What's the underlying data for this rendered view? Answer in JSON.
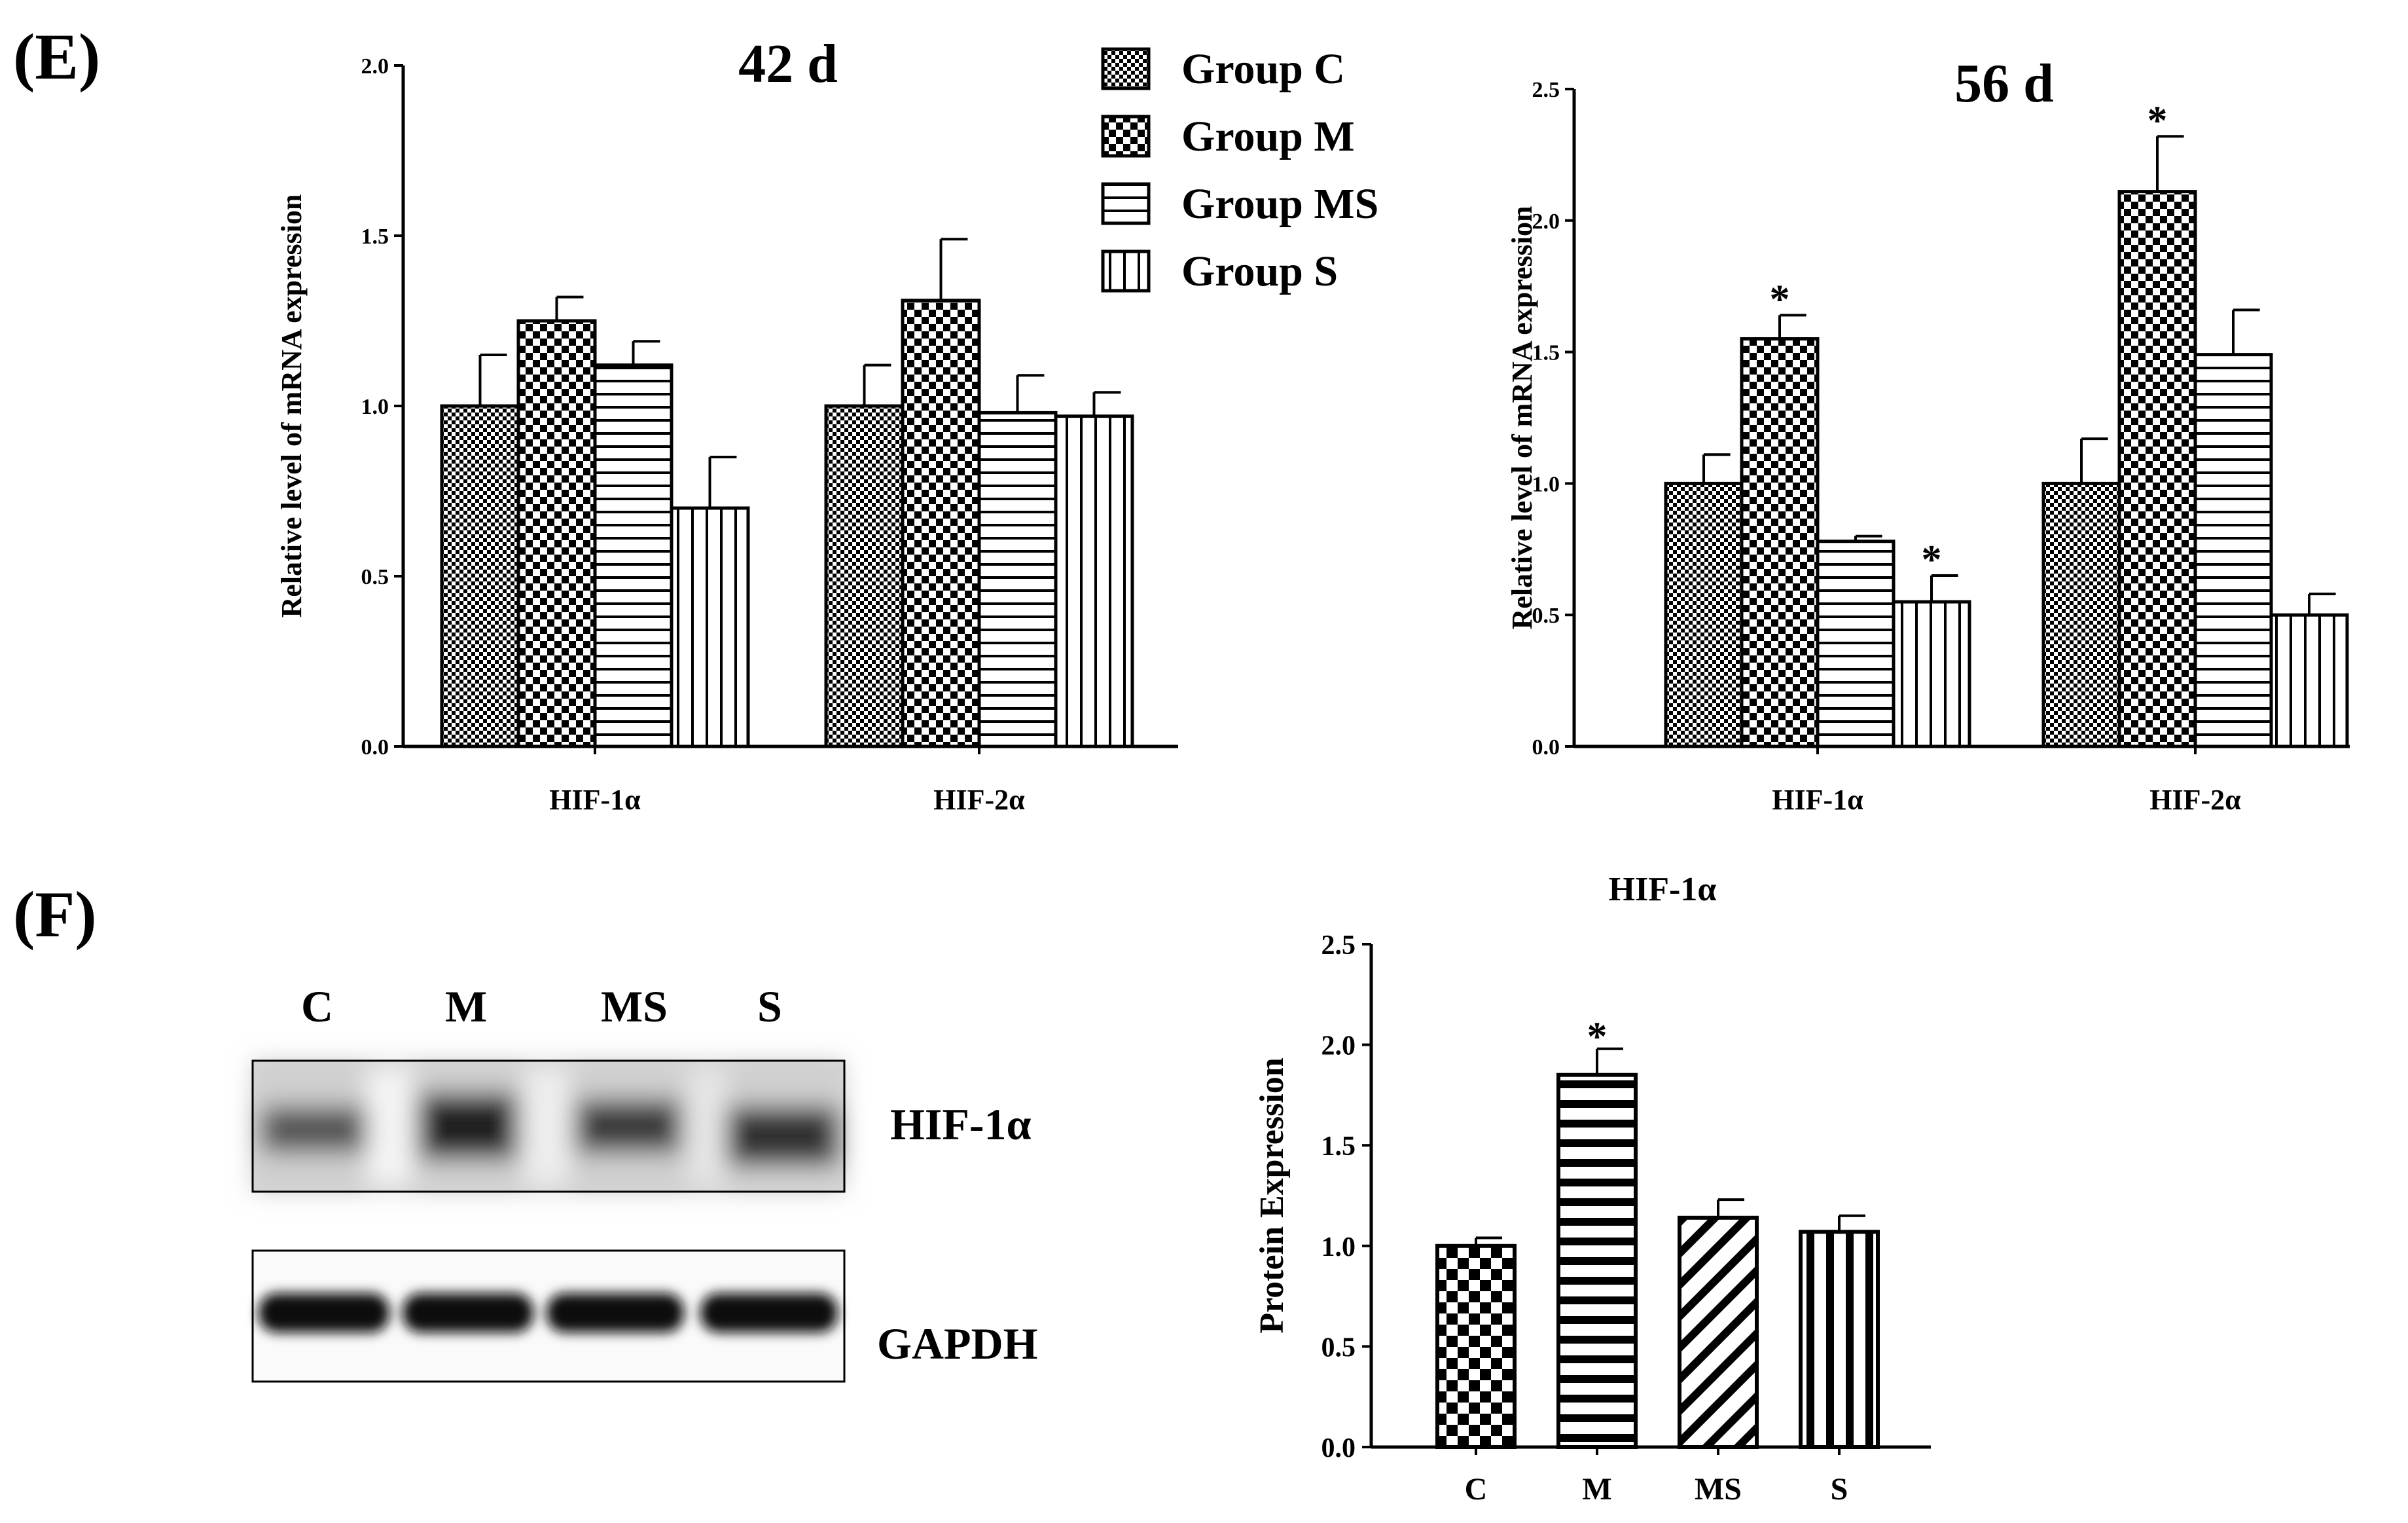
{
  "panels": {
    "e_label": "(E)",
    "f_label": "(F)"
  },
  "legend": [
    {
      "name": "Group C",
      "pattern": "checker-fine"
    },
    {
      "name": "Group M",
      "pattern": "checker-coarse"
    },
    {
      "name": "Group MS",
      "pattern": "horizontal-stripes"
    },
    {
      "name": "Group S",
      "pattern": "vertical-stripes"
    }
  ],
  "chart_data": [
    {
      "type": "bar",
      "title": "42 d",
      "ylabel": "Relative level of mRNA expression",
      "xlabel": "",
      "categories": [
        "HIF-1α",
        "HIF-2α"
      ],
      "ylim": [
        0,
        2.0
      ],
      "yticks": [
        "0.0",
        "0.5",
        "1.0",
        "1.5",
        "2.0"
      ],
      "series": [
        {
          "name": "Group C",
          "values": [
            1.0,
            1.0
          ],
          "errors": [
            0.15,
            0.12
          ],
          "sig": [
            false,
            false
          ]
        },
        {
          "name": "Group M",
          "values": [
            1.25,
            1.31
          ],
          "errors": [
            0.07,
            0.18
          ],
          "sig": [
            false,
            false
          ]
        },
        {
          "name": "Group MS",
          "values": [
            1.12,
            0.98
          ],
          "errors": [
            0.07,
            0.11
          ],
          "sig": [
            false,
            false
          ]
        },
        {
          "name": "Group S",
          "values": [
            0.7,
            0.97
          ],
          "errors": [
            0.15,
            0.07
          ],
          "sig": [
            false,
            false
          ]
        }
      ]
    },
    {
      "type": "bar",
      "title": "56 d",
      "ylabel": "Relative level of mRNA expression",
      "xlabel": "",
      "categories": [
        "HIF-1α",
        "HIF-2α"
      ],
      "ylim": [
        0,
        2.5
      ],
      "yticks": [
        "0.0",
        "0.5",
        "1.0",
        "1.5",
        "2.0",
        "2.5"
      ],
      "series": [
        {
          "name": "Group C",
          "values": [
            1.0,
            1.0
          ],
          "errors": [
            0.11,
            0.17
          ],
          "sig": [
            false,
            false
          ]
        },
        {
          "name": "Group M",
          "values": [
            1.55,
            2.11
          ],
          "errors": [
            0.09,
            0.21
          ],
          "sig": [
            true,
            true
          ]
        },
        {
          "name": "Group MS",
          "values": [
            0.78,
            1.49
          ],
          "errors": [
            0.02,
            0.17
          ],
          "sig": [
            false,
            false
          ]
        },
        {
          "name": "Group S",
          "values": [
            0.55,
            0.5
          ],
          "errors": [
            0.1,
            0.08
          ],
          "sig": [
            true,
            false
          ]
        }
      ]
    },
    {
      "type": "bar",
      "title": "HIF-1α",
      "ylabel": "Protein Expression",
      "xlabel": "",
      "categories": [
        "C",
        "M",
        "MS",
        "S"
      ],
      "ylim": [
        0,
        2.5
      ],
      "yticks": [
        "0.0",
        "0.5",
        "1.0",
        "1.5",
        "2.0",
        "2.5"
      ],
      "values": [
        1.0,
        1.85,
        1.14,
        1.07
      ],
      "errors": [
        0.04,
        0.13,
        0.09,
        0.08
      ],
      "sig": [
        false,
        true,
        false,
        false
      ],
      "patterns": [
        "checker-coarse",
        "horizontal-stripes",
        "diagonal-stripes",
        "vertical-stripes"
      ]
    }
  ],
  "western_blot": {
    "lanes": [
      "C",
      "M",
      "MS",
      "S"
    ],
    "bands": [
      "HIF-1α",
      "GAPDH"
    ]
  },
  "significance_marker": "*"
}
